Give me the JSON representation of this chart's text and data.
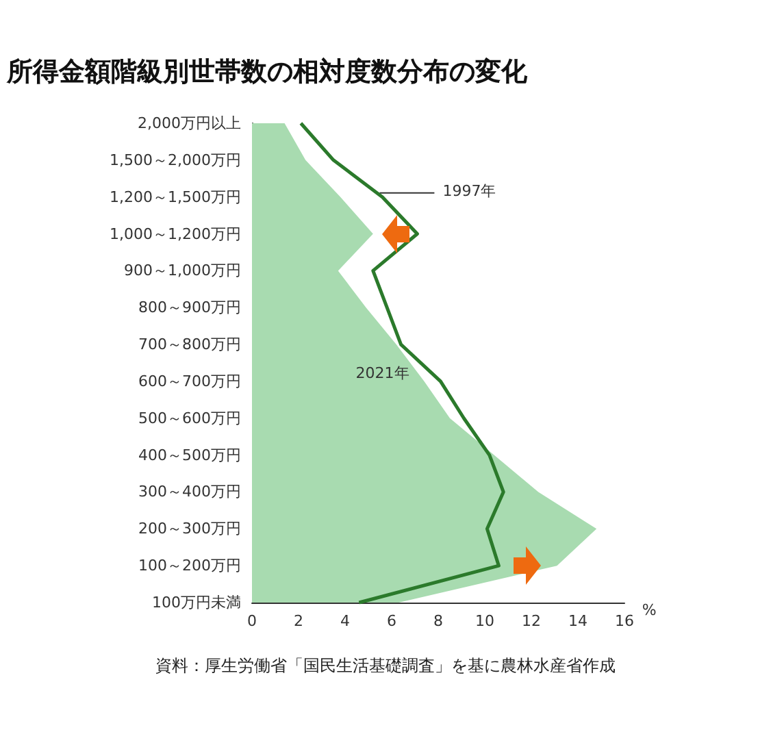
{
  "chart_data": {
    "type": "area",
    "title": "所得金額階級別世帯数の相対度数分布の変化",
    "orientation": "horizontal",
    "xlabel": "%",
    "categories": [
      "2,000万円以上",
      "1,500～2,000万円",
      "1,200～1,500万円",
      "1,000～1,200万円",
      "900～1,000万円",
      "800～900万円",
      "700～800万円",
      "600～700万円",
      "500～600万円",
      "400～500万円",
      "300～400万円",
      "200～300万円",
      "100～200万円",
      "100万円未満"
    ],
    "series": [
      {
        "name": "2021年",
        "type": "area",
        "color": "#a8dbb0",
        "values": [
          1.4,
          2.3,
          3.8,
          5.2,
          3.7,
          4.9,
          6.2,
          7.4,
          8.5,
          10.4,
          12.3,
          14.8,
          13.1,
          6.3
        ]
      },
      {
        "name": "1997年",
        "type": "line",
        "color": "#2b7a2b",
        "values": [
          2.1,
          3.5,
          5.6,
          7.1,
          5.2,
          5.8,
          6.4,
          8.1,
          9.1,
          10.2,
          10.8,
          10.1,
          10.6,
          4.6
        ]
      }
    ],
    "xlim": [
      0,
      16
    ],
    "xticks": [
      0,
      2,
      4,
      6,
      8,
      10,
      12,
      14,
      16
    ],
    "grid": false,
    "legend": false,
    "marker": "none",
    "line_style": "solid",
    "annotations": [
      "資料：厚生労働省「国民生活基礎調査」を基に農林水産省作成"
    ]
  }
}
